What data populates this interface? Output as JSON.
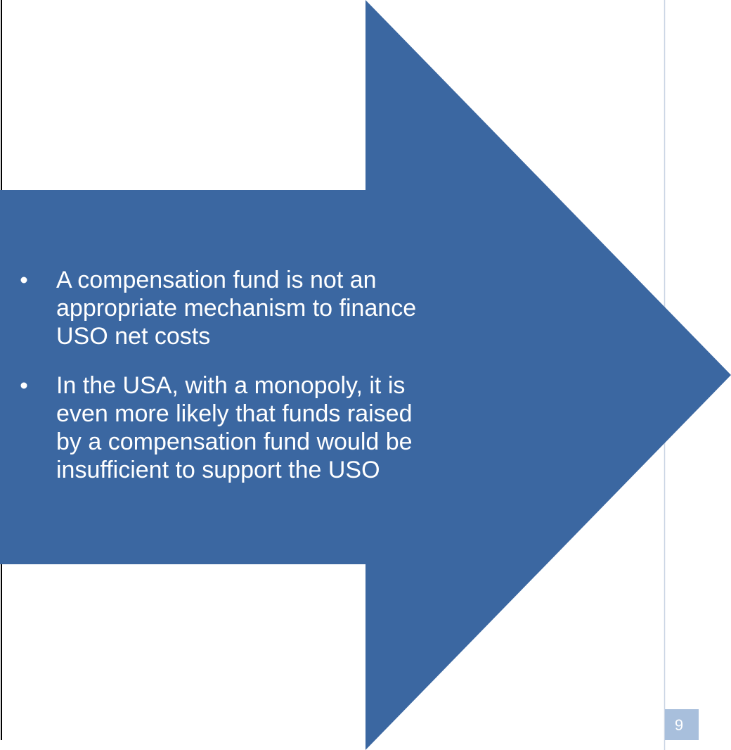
{
  "bullets": [
    {
      "lines": [
        "A compensation fund is not an",
        "appropriate mechanism to finance",
        "USO net costs"
      ]
    },
    {
      "lines": [
        "In the USA, with a monopoly, it is",
        "even more likely that funds raised",
        "by a compensation fund would be",
        "insufficient to support the USO"
      ]
    }
  ],
  "page_number": "9"
}
